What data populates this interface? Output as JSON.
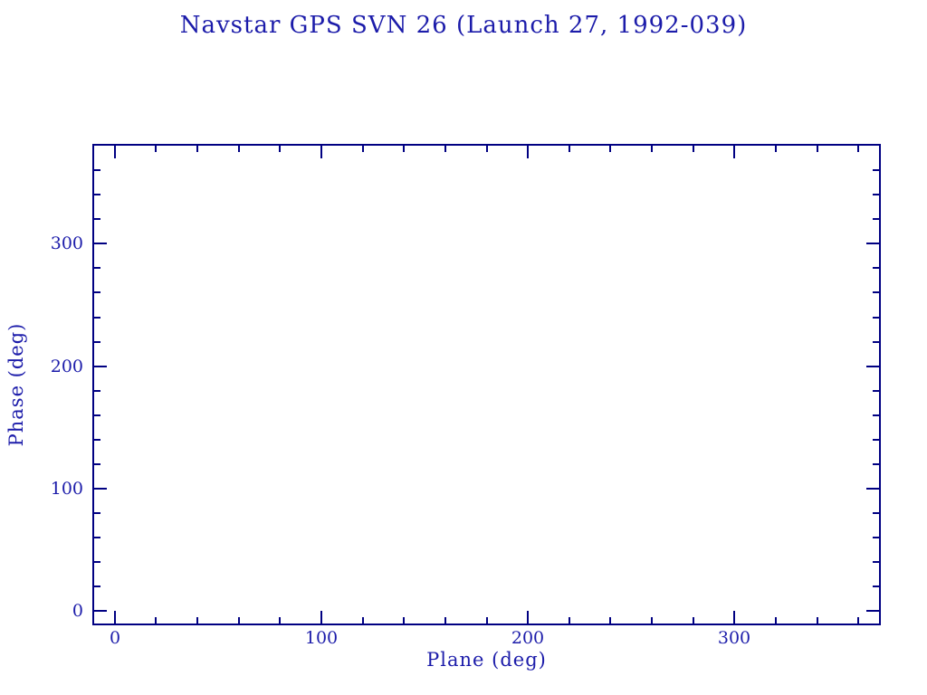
{
  "title": "Navstar GPS SVN 26 (Launch 27, 1992-039)",
  "colors": {
    "ink": "#1c1caa",
    "axis": "#000082",
    "background": "#ffffff"
  },
  "chart_data": {
    "type": "scatter",
    "title": "Navstar GPS SVN 26 (Launch 27, 1992-039)",
    "xlabel": "Plane (deg)",
    "ylabel": "Phase (deg)",
    "xlim": [
      -10,
      370
    ],
    "ylim": [
      -10,
      380
    ],
    "x_major_ticks": [
      0,
      100,
      200,
      300
    ],
    "x_major_tick_labels": [
      "0",
      "100",
      "200",
      "300"
    ],
    "y_major_ticks": [
      0,
      100,
      200,
      300
    ],
    "y_major_tick_labels": [
      "0",
      "100",
      "200",
      "300"
    ],
    "x_minor_ticks": [
      20,
      40,
      60,
      80,
      120,
      140,
      160,
      180,
      220,
      240,
      260,
      280,
      320,
      340,
      360
    ],
    "y_minor_ticks": [
      20,
      40,
      60,
      80,
      120,
      140,
      160,
      180,
      220,
      240,
      260,
      280,
      320,
      340,
      360
    ],
    "ticks_mirrored": true,
    "ticks_direction": "in",
    "grid": false,
    "legend": null,
    "series": []
  }
}
